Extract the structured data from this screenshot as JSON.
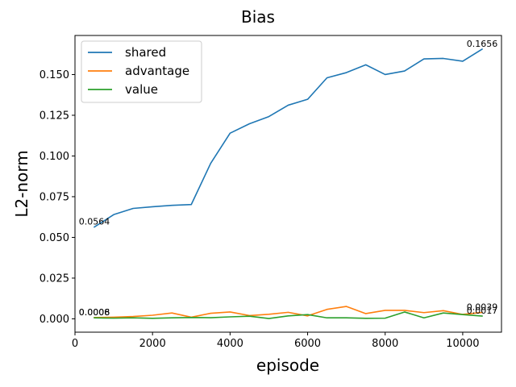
{
  "chart_data": {
    "type": "line",
    "title": "Bias",
    "xlabel": "episode",
    "ylabel": "L2-norm",
    "xlim": [
      0,
      11000
    ],
    "ylim": [
      -0.0082,
      0.174
    ],
    "xticks": [
      0,
      2000,
      4000,
      6000,
      8000,
      10000
    ],
    "xtick_labels": [
      "0",
      "2000",
      "4000",
      "6000",
      "8000",
      "10000"
    ],
    "yticks": [
      0.0,
      0.025,
      0.05,
      0.075,
      0.1,
      0.125,
      0.15
    ],
    "ytick_labels": [
      "0.000",
      "0.025",
      "0.050",
      "0.075",
      "0.100",
      "0.125",
      "0.150"
    ],
    "grid": false,
    "legend_position": "top-left",
    "x": [
      500,
      1000,
      1500,
      2000,
      2500,
      3000,
      3500,
      4000,
      4500,
      5000,
      5500,
      6000,
      6500,
      7000,
      7500,
      8000,
      8500,
      9000,
      9500,
      10000,
      10500
    ],
    "series": [
      {
        "name": "shared",
        "color": "#1f77b4",
        "values": [
          0.0564,
          0.064,
          0.0678,
          0.0688,
          0.0697,
          0.0702,
          0.0955,
          0.114,
          0.1198,
          0.1242,
          0.1312,
          0.1348,
          0.148,
          0.1512,
          0.156,
          0.15,
          0.1522,
          0.1596,
          0.1599,
          0.1582,
          0.1656
        ]
      },
      {
        "name": "advantage",
        "color": "#ff7f0e",
        "values": [
          0.0008,
          0.001,
          0.0014,
          0.0022,
          0.0036,
          0.001,
          0.0034,
          0.0042,
          0.002,
          0.0028,
          0.004,
          0.0018,
          0.0058,
          0.0076,
          0.0032,
          0.0052,
          0.0052,
          0.0038,
          0.005,
          0.0027,
          0.0039
        ]
      },
      {
        "name": "value",
        "color": "#2ca02c",
        "values": [
          0.0006,
          0.0004,
          0.0006,
          0.0003,
          0.0006,
          0.0008,
          0.0007,
          0.0012,
          0.0016,
          0.0002,
          0.0018,
          0.0026,
          0.0006,
          0.0006,
          0.0003,
          0.0004,
          0.0042,
          0.0006,
          0.0036,
          0.0026,
          0.0017
        ]
      }
    ],
    "annotations": [
      {
        "text": "0.0564",
        "x": 500,
        "y": 0.0564
      },
      {
        "text": "0.0008",
        "x": 500,
        "y": 0.0008
      },
      {
        "text": "0.0006",
        "x": 500,
        "y": 0.0006
      },
      {
        "text": "0.1656",
        "x": 10500,
        "y": 0.1656
      },
      {
        "text": "0.0039",
        "x": 10500,
        "y": 0.0039
      },
      {
        "text": "0.0017",
        "x": 10500,
        "y": 0.0017
      }
    ]
  }
}
